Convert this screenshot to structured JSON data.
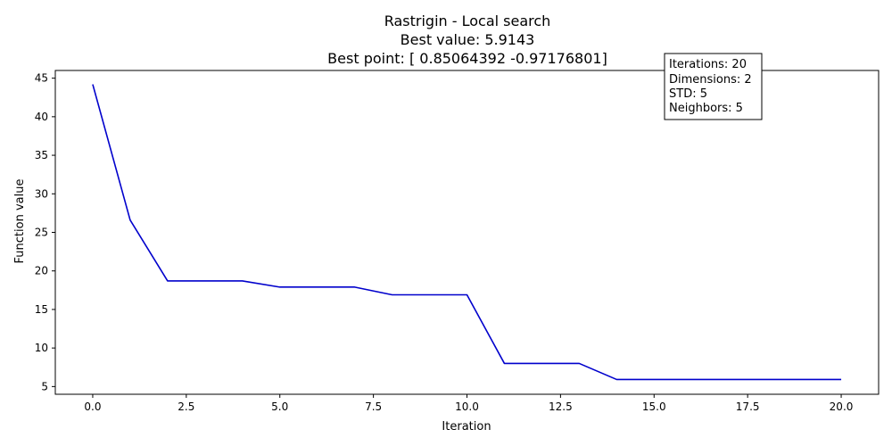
{
  "chart_data": {
    "type": "line",
    "title_lines": [
      "Rastrigin - Local search",
      "Best value: 5.9143",
      "Best point: [ 0.85064392 -0.97176801]"
    ],
    "xlabel": "Iteration",
    "ylabel": "Function value",
    "xlim": [
      -1,
      21
    ],
    "ylim": [
      4,
      46
    ],
    "xticks": [
      0.0,
      2.5,
      5.0,
      7.5,
      10.0,
      12.5,
      15.0,
      17.5,
      20.0
    ],
    "xtick_labels": [
      "0.0",
      "2.5",
      "5.0",
      "7.5",
      "10.0",
      "12.5",
      "15.0",
      "17.5",
      "20.0"
    ],
    "yticks": [
      5,
      10,
      15,
      20,
      25,
      30,
      35,
      40,
      45
    ],
    "ytick_labels": [
      "5",
      "10",
      "15",
      "20",
      "25",
      "30",
      "35",
      "40",
      "45"
    ],
    "grid": false,
    "series": [
      {
        "color": "#0000cc",
        "x": [
          0,
          1,
          2,
          3,
          4,
          5,
          6,
          7,
          8,
          9,
          10,
          11,
          12,
          13,
          14,
          15,
          16,
          17,
          18,
          19,
          20
        ],
        "y": [
          44.2,
          26.6,
          18.7,
          18.7,
          18.7,
          17.9,
          17.9,
          17.9,
          16.9,
          16.9,
          16.9,
          8.0,
          8.0,
          8.0,
          5.9143,
          5.9143,
          5.9143,
          5.9143,
          5.9143,
          5.9143,
          5.9143
        ]
      }
    ],
    "annotation": {
      "lines": [
        "Iterations: 20",
        "Dimensions: 2",
        "STD: 5",
        "Neighbors: 5"
      ]
    }
  }
}
